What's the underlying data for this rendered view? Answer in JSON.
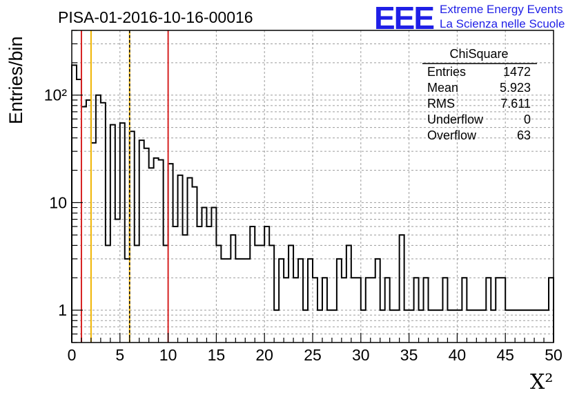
{
  "chart_data": {
    "type": "bar",
    "histogram": true,
    "title": "PISA-01-2016-10-16-00016",
    "xlabel": "X²",
    "ylabel": "Entries/bin",
    "xlim": [
      0,
      50
    ],
    "ylim": [
      0.5,
      400
    ],
    "yscale": "log",
    "grid": true,
    "bin_width": 0.5,
    "x_ticks": [
      "0",
      "5",
      "10",
      "15",
      "20",
      "25",
      "30",
      "35",
      "40",
      "45",
      "50"
    ],
    "y_ticks": [
      {
        "value": 1,
        "label": "1"
      },
      {
        "value": 10,
        "label": "10"
      },
      {
        "value": 100,
        "label": "10²"
      }
    ],
    "values": [
      190,
      140,
      78,
      90,
      36,
      100,
      85,
      4,
      53,
      7,
      55,
      3,
      46,
      4,
      38,
      32,
      21,
      26,
      25,
      4,
      23,
      6,
      18,
      5,
      17,
      14,
      6,
      9,
      6,
      9,
      4,
      3,
      3,
      5,
      3,
      3,
      3,
      6,
      4,
      4,
      6,
      4,
      1,
      3,
      2,
      4,
      2,
      3,
      1,
      3,
      2,
      1,
      2,
      1,
      1,
      3,
      2,
      4,
      2,
      2,
      1,
      2,
      2,
      3,
      1,
      2,
      1,
      1,
      5,
      1,
      1,
      2,
      1,
      2,
      1,
      1,
      1,
      2,
      1,
      1,
      1,
      2,
      1,
      1,
      1,
      1,
      2,
      1,
      2,
      2,
      1,
      1,
      1,
      1,
      1,
      1,
      1,
      1,
      1,
      2
    ],
    "cut_lines": [
      {
        "x": 1,
        "color": "#d62020",
        "style": "solid"
      },
      {
        "x": 2,
        "color": "#f0b400",
        "style": "solid"
      },
      {
        "x": 6,
        "color": "#f0b400",
        "style": "solid"
      },
      {
        "x": 6,
        "color": "#000000",
        "style": "dashed"
      },
      {
        "x": 10,
        "color": "#d62020",
        "style": "solid"
      }
    ],
    "stats_box": {
      "title": "ChiSquare",
      "rows": [
        {
          "label": "Entries",
          "value": "1472"
        },
        {
          "label": "Mean",
          "value": "5.923"
        },
        {
          "label": "RMS",
          "value": "7.611"
        },
        {
          "label": "Underflow",
          "value": "0"
        },
        {
          "label": "Overflow",
          "value": "63"
        }
      ]
    }
  },
  "logo": {
    "mark": "EEE",
    "line1": "Extreme Energy Events",
    "line2": "La Scienza nelle Scuole",
    "color": "#1f1fe6"
  }
}
